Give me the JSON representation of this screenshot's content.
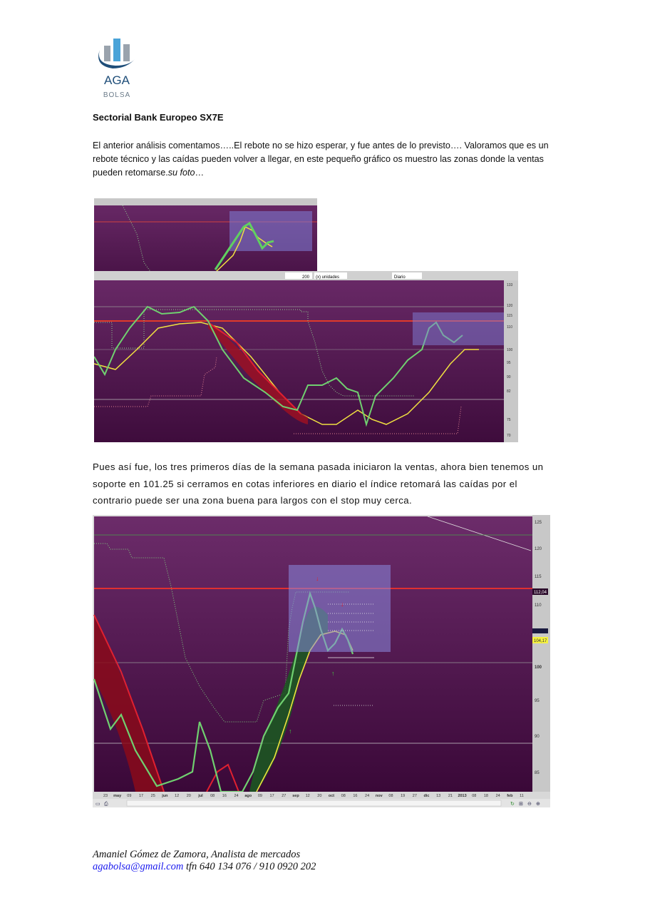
{
  "logo": {
    "text_top": "AGA",
    "text_bottom": "BOLSA",
    "color_primary": "#1f4e79",
    "color_accent": "#4aa3d8"
  },
  "title": "Sectorial Bank Europeo SX7E",
  "paragraph1": {
    "text": "El anterior análisis comentamos…..El rebote no se hizo esperar, y fue antes de lo previsto…. Valoramos que es un rebote técnico  y las caídas pueden volver a llegar, en este pequeño gráfico os muestro las zonas donde la ventas pueden retomarse.",
    "italic_tail": "su foto",
    "tail": "…"
  },
  "chart1": {
    "toolbar": {
      "bars_value": "200",
      "units_select": "(x) unidades",
      "period_select": "Diario"
    },
    "y_ticks": [
      "133",
      "120",
      "115",
      "110",
      "100",
      "95",
      "90",
      "82",
      "75",
      "70"
    ],
    "colors": {
      "background": "#5a1f58",
      "zone": "#7a7ad8",
      "resistance": "#e0302a",
      "ma": "#f0e040"
    }
  },
  "paragraph2": "Pues así fue, los tres primeros días de la semana pasada iniciaron la ventas, ahora bien tenemos un soporte en 101.25 si cerramos en cotas inferiores en diario el índice retomará las caídas por el contrario puede ser una zona buena para largos con el stop muy cerca.",
  "chart2": {
    "y_ticks": [
      "125",
      "120",
      "115",
      "110",
      "100",
      "95",
      "90",
      "85"
    ],
    "price_tags": {
      "resistance": "112,04",
      "last": "104,17"
    },
    "x_labels": [
      "23",
      "may",
      "09",
      "17",
      "25",
      "jun",
      "12",
      "20",
      "jul",
      "08",
      "16",
      "24",
      "ago",
      "09",
      "17",
      "27",
      "sep",
      "12",
      "20",
      "oct",
      "08",
      "16",
      "24",
      "nov",
      "08",
      "19",
      "27",
      "dic",
      "13",
      "21",
      "2013",
      "08",
      "18",
      "24",
      "feb",
      "11"
    ],
    "colors": {
      "background": "#5a1f58",
      "zone": "#8a8ae0",
      "resistance": "#e0302a",
      "ma": "#f0e040",
      "last_tag": "#f4f040"
    }
  },
  "footer": {
    "author": "Amaniel Gómez de Zamora, Analista de mercados",
    "email": "agabolsa@gmail.com",
    "phone": " tfn 640 134 076 / 910 0920 202"
  }
}
